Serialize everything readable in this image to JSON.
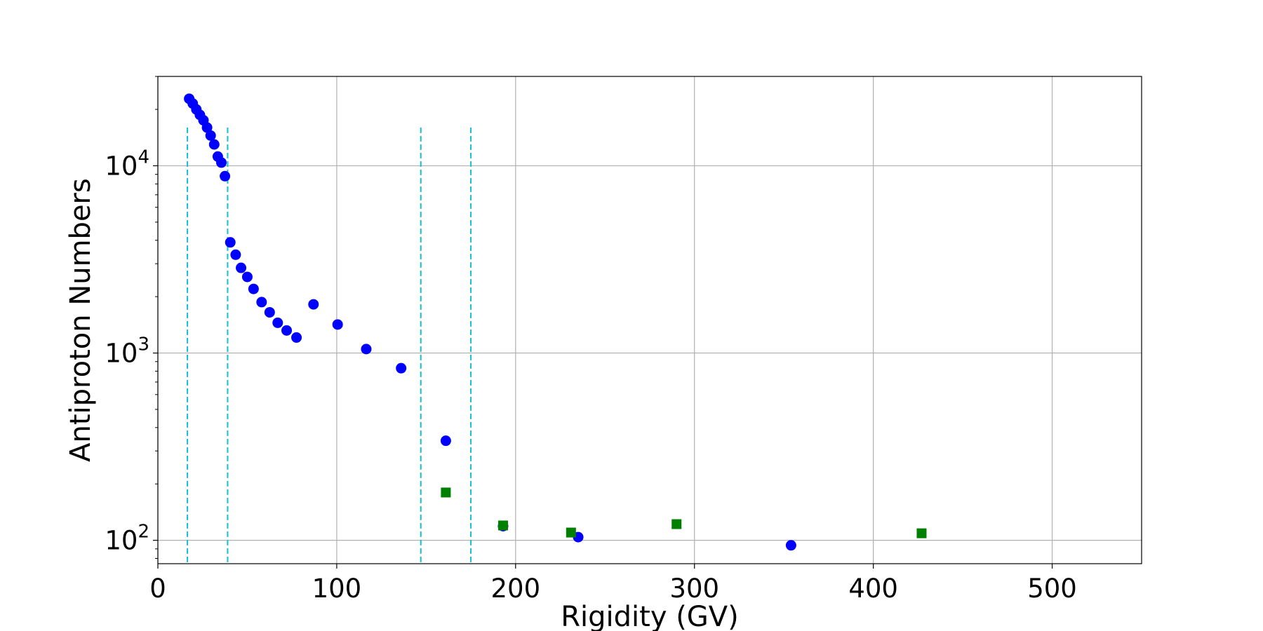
{
  "chart_data": {
    "type": "scatter",
    "xlabel": "Rigidity (GV)",
    "ylabel": "Antiproton Numbers",
    "xlim": [
      0,
      550
    ],
    "ylim": [
      75,
      30000
    ],
    "y_scale": "log",
    "grid": true,
    "x_ticks": [
      {
        "value": 0,
        "label": "0"
      },
      {
        "value": 100,
        "label": "100"
      },
      {
        "value": 200,
        "label": "200"
      },
      {
        "value": 300,
        "label": "300"
      },
      {
        "value": 400,
        "label": "400"
      },
      {
        "value": 500,
        "label": "500"
      }
    ],
    "y_ticks": [
      {
        "value": 100,
        "base": "10",
        "exp": "2"
      },
      {
        "value": 1000,
        "base": "10",
        "exp": "3"
      },
      {
        "value": 10000,
        "base": "10",
        "exp": "4"
      }
    ],
    "vertical_lines": [
      16.5,
      39,
      147,
      175
    ],
    "vertical_line_top": 16000,
    "series": [
      {
        "marker": "circle",
        "color": "#0000ff",
        "points": [
          [
            17.5,
            22800
          ],
          [
            19.5,
            21500
          ],
          [
            21.5,
            20000
          ],
          [
            23.5,
            18700
          ],
          [
            25.5,
            17500
          ],
          [
            27.5,
            16000
          ],
          [
            29.5,
            14500
          ],
          [
            31.5,
            13000
          ],
          [
            33.5,
            11200
          ],
          [
            35.5,
            10400
          ],
          [
            37.5,
            8800
          ],
          [
            40.5,
            3900
          ],
          [
            43.5,
            3350
          ],
          [
            46.5,
            2850
          ],
          [
            50,
            2550
          ],
          [
            53.5,
            2200
          ],
          [
            58,
            1870
          ],
          [
            62.5,
            1650
          ],
          [
            67,
            1450
          ],
          [
            72,
            1320
          ],
          [
            77.5,
            1210
          ],
          [
            87,
            1820
          ],
          [
            100.5,
            1420
          ],
          [
            116.5,
            1050
          ],
          [
            136,
            830
          ],
          [
            161,
            340
          ],
          [
            193,
            119
          ],
          [
            235,
            104
          ],
          [
            354,
            94
          ]
        ]
      },
      {
        "marker": "square",
        "color": "#008000",
        "points": [
          [
            161,
            180
          ],
          [
            193,
            120
          ],
          [
            231,
            110
          ],
          [
            290,
            122
          ],
          [
            427,
            109
          ]
        ]
      }
    ],
    "vline_color": "#17becf",
    "grid_color": "#b0b0b0"
  }
}
